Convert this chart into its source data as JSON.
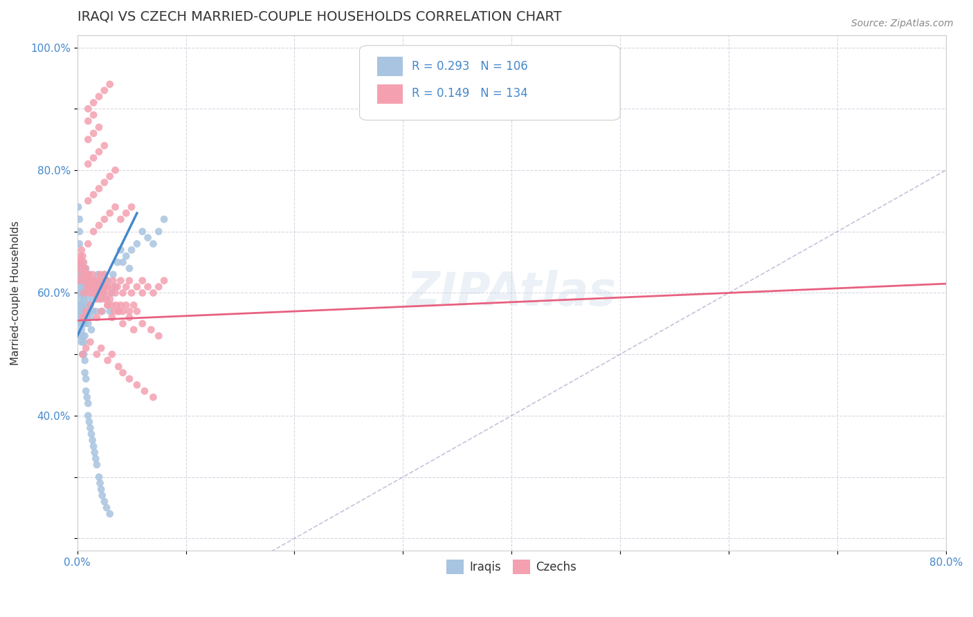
{
  "title": "IRAQI VS CZECH MARRIED-COUPLE HOUSEHOLDS CORRELATION CHART",
  "source_text": "Source: ZipAtlas.com",
  "xlabel_text": "",
  "ylabel_text": "Married-couple Households",
  "xlim": [
    0.0,
    0.8
  ],
  "ylim": [
    0.18,
    1.02
  ],
  "xticks": [
    0.0,
    0.1,
    0.2,
    0.3,
    0.4,
    0.5,
    0.6,
    0.7,
    0.8
  ],
  "xticklabels": [
    "0.0%",
    "",
    "",
    "",
    "",
    "",
    "",
    "",
    "80.0%"
  ],
  "yticks": [
    0.2,
    0.3,
    0.4,
    0.5,
    0.6,
    0.7,
    0.8,
    0.9,
    1.0
  ],
  "yticklabels": [
    "",
    "",
    "40.0%",
    "",
    "60.0%",
    "",
    "80.0%",
    "",
    "100.0%"
  ],
  "iraqis_color": "#a8c4e0",
  "czechs_color": "#f4a0b0",
  "iraqis_line_color": "#4488cc",
  "czechs_line_color": "#e86080",
  "diag_line_color": "#aaaacc",
  "legend_R_iraqis": "R = 0.293",
  "legend_N_iraqis": "N = 106",
  "legend_R_czechs": "R = 0.149",
  "legend_N_czechs": "N = 134",
  "legend_label_iraqis": "Iraqis",
  "legend_label_czechs": "Czechs",
  "watermark": "ZIPAtlas",
  "title_fontsize": 14,
  "axis_label_fontsize": 11,
  "tick_fontsize": 11,
  "source_fontsize": 10,
  "iraqis_x": [
    0.001,
    0.001,
    0.002,
    0.002,
    0.002,
    0.002,
    0.003,
    0.003,
    0.003,
    0.003,
    0.004,
    0.004,
    0.004,
    0.004,
    0.005,
    0.005,
    0.005,
    0.005,
    0.005,
    0.006,
    0.006,
    0.006,
    0.007,
    0.007,
    0.007,
    0.008,
    0.008,
    0.009,
    0.009,
    0.01,
    0.01,
    0.01,
    0.011,
    0.011,
    0.012,
    0.012,
    0.013,
    0.013,
    0.014,
    0.015,
    0.015,
    0.016,
    0.017,
    0.018,
    0.019,
    0.02,
    0.021,
    0.022,
    0.023,
    0.024,
    0.025,
    0.026,
    0.027,
    0.028,
    0.03,
    0.032,
    0.033,
    0.035,
    0.037,
    0.04,
    0.042,
    0.045,
    0.048,
    0.05,
    0.055,
    0.06,
    0.065,
    0.07,
    0.075,
    0.08,
    0.001,
    0.002,
    0.002,
    0.002,
    0.003,
    0.003,
    0.004,
    0.004,
    0.004,
    0.005,
    0.005,
    0.005,
    0.006,
    0.006,
    0.007,
    0.007,
    0.008,
    0.008,
    0.009,
    0.01,
    0.01,
    0.011,
    0.012,
    0.013,
    0.014,
    0.015,
    0.016,
    0.017,
    0.018,
    0.02,
    0.021,
    0.022,
    0.023,
    0.025,
    0.027,
    0.03
  ],
  "iraqis_y": [
    0.55,
    0.58,
    0.6,
    0.57,
    0.62,
    0.53,
    0.56,
    0.64,
    0.59,
    0.61,
    0.54,
    0.57,
    0.63,
    0.52,
    0.58,
    0.61,
    0.56,
    0.65,
    0.5,
    0.59,
    0.62,
    0.57,
    0.55,
    0.6,
    0.53,
    0.58,
    0.64,
    0.56,
    0.61,
    0.59,
    0.62,
    0.55,
    0.57,
    0.63,
    0.58,
    0.56,
    0.6,
    0.54,
    0.57,
    0.61,
    0.59,
    0.62,
    0.57,
    0.6,
    0.63,
    0.61,
    0.59,
    0.62,
    0.57,
    0.6,
    0.63,
    0.61,
    0.59,
    0.62,
    0.57,
    0.6,
    0.63,
    0.61,
    0.65,
    0.67,
    0.65,
    0.66,
    0.64,
    0.67,
    0.68,
    0.7,
    0.69,
    0.68,
    0.7,
    0.72,
    0.74,
    0.72,
    0.68,
    0.7,
    0.65,
    0.63,
    0.62,
    0.6,
    0.58,
    0.57,
    0.55,
    0.53,
    0.52,
    0.5,
    0.49,
    0.47,
    0.46,
    0.44,
    0.43,
    0.42,
    0.4,
    0.39,
    0.38,
    0.37,
    0.36,
    0.35,
    0.34,
    0.33,
    0.32,
    0.3,
    0.29,
    0.28,
    0.27,
    0.26,
    0.25,
    0.24
  ],
  "czechs_x": [
    0.001,
    0.002,
    0.003,
    0.004,
    0.005,
    0.006,
    0.007,
    0.008,
    0.009,
    0.01,
    0.011,
    0.012,
    0.013,
    0.014,
    0.015,
    0.016,
    0.017,
    0.018,
    0.019,
    0.02,
    0.021,
    0.022,
    0.023,
    0.024,
    0.025,
    0.026,
    0.027,
    0.028,
    0.03,
    0.032,
    0.033,
    0.035,
    0.037,
    0.04,
    0.042,
    0.045,
    0.048,
    0.05,
    0.055,
    0.06,
    0.065,
    0.07,
    0.075,
    0.08,
    0.01,
    0.015,
    0.02,
    0.025,
    0.03,
    0.035,
    0.04,
    0.045,
    0.05,
    0.01,
    0.015,
    0.02,
    0.025,
    0.03,
    0.035,
    0.01,
    0.015,
    0.02,
    0.025,
    0.01,
    0.015,
    0.02,
    0.01,
    0.015,
    0.01,
    0.015,
    0.02,
    0.025,
    0.03,
    0.005,
    0.008,
    0.012,
    0.018,
    0.022,
    0.028,
    0.032,
    0.038,
    0.042,
    0.048,
    0.052,
    0.06,
    0.068,
    0.075,
    0.005,
    0.008,
    0.012,
    0.018,
    0.022,
    0.028,
    0.032,
    0.038,
    0.042,
    0.048,
    0.055,
    0.062,
    0.07,
    0.002,
    0.003,
    0.004,
    0.005,
    0.006,
    0.007,
    0.008,
    0.009,
    0.01,
    0.011,
    0.012,
    0.013,
    0.014,
    0.015,
    0.016,
    0.017,
    0.018,
    0.02,
    0.022,
    0.024,
    0.026,
    0.028,
    0.03,
    0.032,
    0.034,
    0.036,
    0.038,
    0.04,
    0.042,
    0.045,
    0.048,
    0.052,
    0.055,
    0.06
  ],
  "czechs_y": [
    0.62,
    0.64,
    0.65,
    0.63,
    0.62,
    0.6,
    0.64,
    0.63,
    0.61,
    0.63,
    0.6,
    0.62,
    0.61,
    0.63,
    0.6,
    0.62,
    0.61,
    0.6,
    0.62,
    0.61,
    0.63,
    0.61,
    0.62,
    0.6,
    0.63,
    0.61,
    0.62,
    0.61,
    0.6,
    0.61,
    0.62,
    0.6,
    0.61,
    0.62,
    0.6,
    0.61,
    0.62,
    0.6,
    0.61,
    0.62,
    0.61,
    0.6,
    0.61,
    0.62,
    0.68,
    0.7,
    0.71,
    0.72,
    0.73,
    0.74,
    0.72,
    0.73,
    0.74,
    0.75,
    0.76,
    0.77,
    0.78,
    0.79,
    0.8,
    0.81,
    0.82,
    0.83,
    0.84,
    0.85,
    0.86,
    0.87,
    0.88,
    0.89,
    0.9,
    0.91,
    0.92,
    0.93,
    0.94,
    0.56,
    0.57,
    0.58,
    0.56,
    0.57,
    0.58,
    0.56,
    0.57,
    0.55,
    0.56,
    0.54,
    0.55,
    0.54,
    0.53,
    0.5,
    0.51,
    0.52,
    0.5,
    0.51,
    0.49,
    0.5,
    0.48,
    0.47,
    0.46,
    0.45,
    0.44,
    0.43,
    0.65,
    0.66,
    0.67,
    0.66,
    0.65,
    0.64,
    0.63,
    0.62,
    0.63,
    0.62,
    0.61,
    0.62,
    0.61,
    0.6,
    0.61,
    0.6,
    0.59,
    0.6,
    0.59,
    0.6,
    0.59,
    0.58,
    0.59,
    0.58,
    0.57,
    0.58,
    0.57,
    0.58,
    0.57,
    0.58,
    0.57,
    0.58,
    0.57,
    0.6
  ]
}
